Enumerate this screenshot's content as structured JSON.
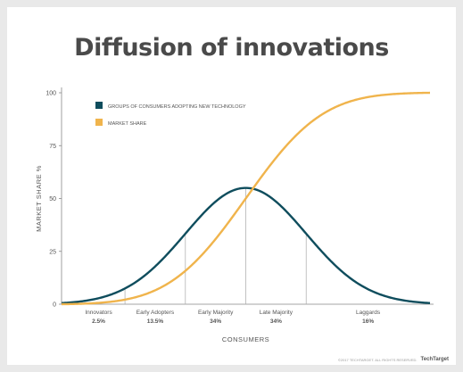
{
  "title": "Diffusion of innovations",
  "footer": {
    "copyright": "©2017 TECHTARGET. ALL RIGHTS RESERVED.",
    "logo": "TechTarget"
  },
  "colors": {
    "bell": "#0f4d5d",
    "share": "#f0b44c",
    "axis": "#888888",
    "text": "#555555"
  },
  "chart_data": {
    "type": "line",
    "title": "Diffusion of innovations",
    "xlabel": "CONSUMERS",
    "ylabel": "MARKET SHARE %",
    "ylim": [
      0,
      100
    ],
    "yticks": [
      "0",
      "25",
      "50",
      "75",
      "100"
    ],
    "legend_placement": "top-left",
    "grid": false,
    "series": [
      {
        "name": "GROUPS OF CONSUMERS ADOPTING NEW TECHNOLOGY",
        "color": "#0f4d5d",
        "kind": "bell",
        "peak": 55
      },
      {
        "name": "MARKET SHARE",
        "color": "#f0b44c",
        "kind": "cumulative",
        "max": 100
      }
    ],
    "segments": [
      {
        "label": "Innovators",
        "value": "2.5%"
      },
      {
        "label": "Early Adopters",
        "value": "13.5%"
      },
      {
        "label": "Early Majority",
        "value": "34%"
      },
      {
        "label": "Late Majority",
        "value": "34%"
      },
      {
        "label": "Laggards",
        "value": "16%"
      }
    ]
  }
}
